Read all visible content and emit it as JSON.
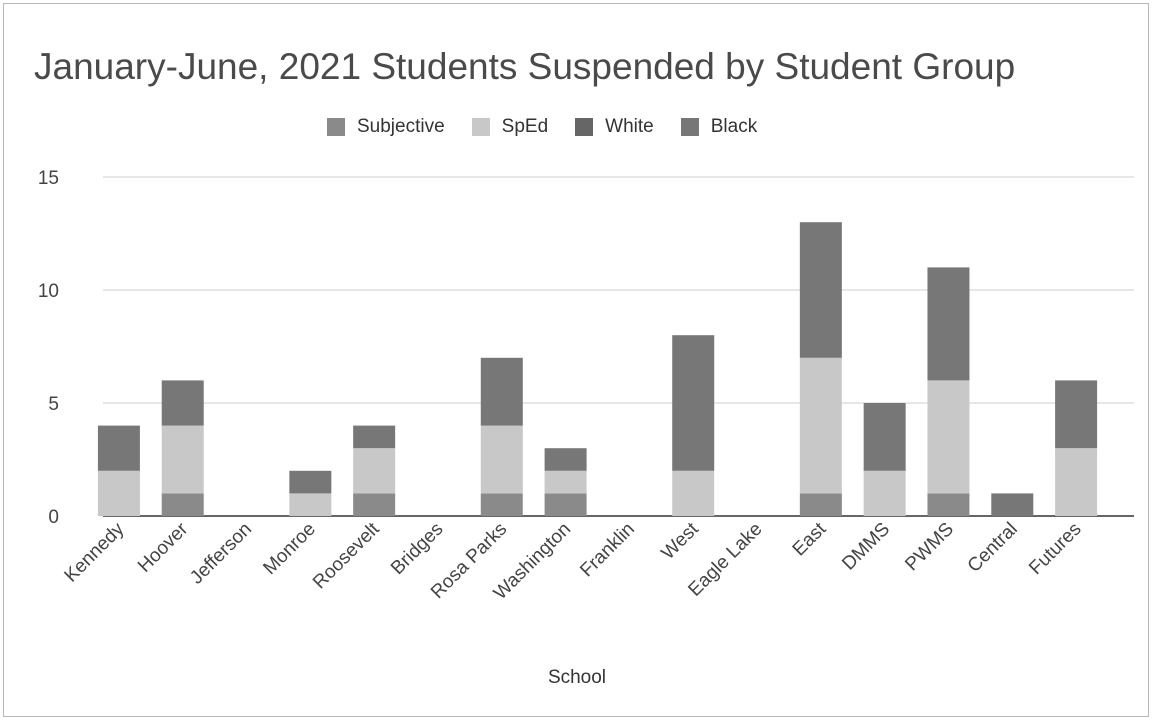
{
  "chart_data": {
    "type": "bar",
    "stacked": true,
    "title": "January-June, 2021 Students Suspended by Student Group",
    "xlabel": "School",
    "ylabel": "",
    "ylim": [
      0,
      15
    ],
    "yticks": [
      "0",
      "5",
      "10",
      "15"
    ],
    "grid": true,
    "legend": "top-center",
    "categories": [
      "Kennedy",
      "Hoover",
      "Jefferson",
      "Monroe",
      "Roosevelt",
      "Bridges",
      "Rosa Parks",
      "Washington",
      "Franklin",
      "West",
      "Eagle Lake",
      "East",
      "DMMS",
      "PWMS",
      "Central",
      "Futures"
    ],
    "series": [
      {
        "name": "Subjective",
        "color": "#8a8a8a",
        "values": [
          0,
          1,
          0,
          0,
          1,
          0,
          1,
          1,
          0,
          0,
          0,
          1,
          0,
          1,
          0,
          0
        ]
      },
      {
        "name": "SpEd",
        "color": "#c8c8c8",
        "values": [
          2,
          3,
          0,
          1,
          2,
          0,
          3,
          1,
          0,
          2,
          0,
          6,
          2,
          5,
          0,
          3
        ]
      },
      {
        "name": "White",
        "color": "#666666",
        "values": [
          0,
          0,
          0,
          0,
          0,
          0,
          0,
          0,
          0,
          0,
          0,
          0,
          0,
          0,
          0,
          0
        ]
      },
      {
        "name": "Black",
        "color": "#777777",
        "values": [
          2,
          2,
          0,
          1,
          1,
          0,
          3,
          1,
          0,
          6,
          0,
          6,
          3,
          5,
          1,
          3
        ]
      }
    ]
  }
}
